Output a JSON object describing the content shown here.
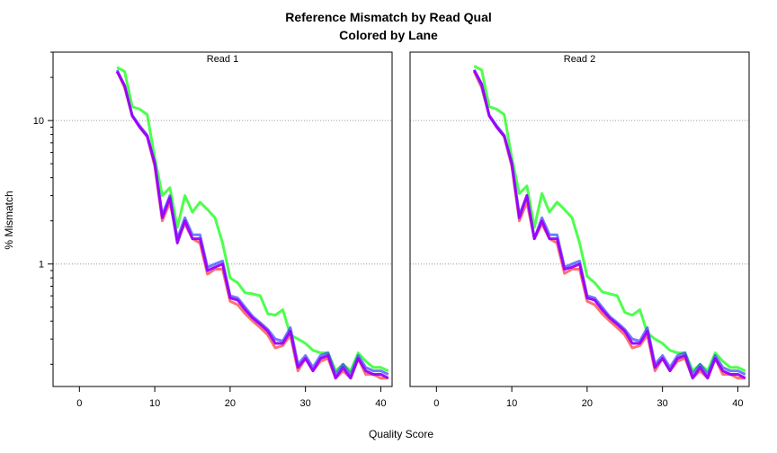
{
  "chart_data": {
    "type": "line",
    "title": "Reference Mismatch by Read Qual",
    "subtitle": "Colored by Lane",
    "xlabel": "Quality Score",
    "ylabel": "% Mismatch",
    "xlim": [
      -3.5,
      41.5
    ],
    "ylim": [
      0.14,
      30
    ],
    "log_y": true,
    "x_ticks": [
      0,
      10,
      20,
      30,
      40
    ],
    "y_ticks": [
      1,
      10
    ],
    "grid": "horizontal dotted at y ticks",
    "x": [
      5,
      6,
      7,
      8,
      9,
      10,
      11,
      12,
      13,
      14,
      15,
      16,
      17,
      18,
      19,
      20,
      21,
      22,
      23,
      24,
      25,
      26,
      27,
      28,
      29,
      30,
      31,
      32,
      33,
      34,
      35,
      36,
      37,
      38,
      39,
      40,
      41
    ],
    "panels": [
      {
        "label": "Read 1",
        "series": [
          {
            "color": "#00ff00",
            "values": [
              23.5,
              22.0,
              12.5,
              12.0,
              11.0,
              5.5,
              3.0,
              3.4,
              1.8,
              3.0,
              2.3,
              2.7,
              2.4,
              2.1,
              1.4,
              0.8,
              0.74,
              0.63,
              0.62,
              0.6,
              0.45,
              0.44,
              0.48,
              0.32,
              0.3,
              0.28,
              0.25,
              0.24,
              0.24,
              0.18,
              0.2,
              0.18,
              0.24,
              0.21,
              0.19,
              0.19,
              0.18
            ]
          },
          {
            "color": "#9a00ff",
            "values": [
              22.0,
              17.5,
              10.8,
              9.0,
              7.8,
              5.0,
              2.1,
              2.9,
              1.4,
              2.0,
              1.5,
              1.5,
              0.9,
              0.95,
              1.0,
              0.58,
              0.56,
              0.48,
              0.42,
              0.38,
              0.34,
              0.28,
              0.28,
              0.34,
              0.19,
              0.22,
              0.18,
              0.22,
              0.23,
              0.16,
              0.19,
              0.16,
              0.22,
              0.18,
              0.17,
              0.17,
              0.16
            ]
          },
          {
            "color": "#ff3333",
            "values": [
              22.0,
              17.0,
              10.8,
              9.0,
              7.7,
              4.8,
              2.0,
              2.7,
              1.5,
              1.9,
              1.5,
              1.4,
              0.85,
              0.92,
              0.92,
              0.55,
              0.52,
              0.45,
              0.4,
              0.36,
              0.32,
              0.26,
              0.27,
              0.32,
              0.18,
              0.22,
              0.18,
              0.21,
              0.22,
              0.16,
              0.18,
              0.16,
              0.22,
              0.17,
              0.17,
              0.16,
              0.16
            ]
          },
          {
            "color": "#3344ff",
            "values": [
              22.5,
              17.5,
              10.9,
              9.2,
              7.9,
              5.1,
              2.2,
              3.0,
              1.5,
              2.1,
              1.6,
              1.6,
              0.95,
              1.0,
              1.05,
              0.6,
              0.58,
              0.5,
              0.43,
              0.39,
              0.35,
              0.3,
              0.29,
              0.36,
              0.2,
              0.23,
              0.19,
              0.23,
              0.24,
              0.17,
              0.2,
              0.17,
              0.23,
              0.19,
              0.18,
              0.18,
              0.17
            ]
          }
        ]
      },
      {
        "label": "Read 2",
        "series": [
          {
            "color": "#00ff00",
            "values": [
              24.0,
              22.5,
              12.5,
              12.0,
              11.0,
              5.5,
              3.1,
              3.5,
              1.8,
              3.1,
              2.3,
              2.7,
              2.4,
              2.1,
              1.4,
              0.82,
              0.74,
              0.64,
              0.62,
              0.6,
              0.46,
              0.44,
              0.48,
              0.33,
              0.3,
              0.28,
              0.25,
              0.24,
              0.24,
              0.18,
              0.2,
              0.18,
              0.24,
              0.21,
              0.19,
              0.19,
              0.18
            ]
          },
          {
            "color": "#9a00ff",
            "values": [
              22.5,
              18.0,
              10.8,
              9.0,
              7.8,
              5.0,
              2.1,
              3.0,
              1.5,
              2.0,
              1.5,
              1.5,
              0.92,
              0.95,
              1.0,
              0.58,
              0.56,
              0.48,
              0.42,
              0.38,
              0.34,
              0.28,
              0.28,
              0.34,
              0.19,
              0.22,
              0.18,
              0.22,
              0.23,
              0.16,
              0.19,
              0.16,
              0.22,
              0.18,
              0.17,
              0.17,
              0.16
            ]
          },
          {
            "color": "#ff3333",
            "values": [
              22.0,
              17.0,
              10.8,
              9.0,
              7.7,
              4.8,
              2.0,
              2.7,
              1.5,
              1.9,
              1.5,
              1.4,
              0.86,
              0.92,
              0.92,
              0.55,
              0.52,
              0.45,
              0.4,
              0.36,
              0.32,
              0.26,
              0.27,
              0.32,
              0.18,
              0.22,
              0.18,
              0.21,
              0.22,
              0.16,
              0.18,
              0.16,
              0.22,
              0.17,
              0.17,
              0.16,
              0.16
            ]
          },
          {
            "color": "#3344ff",
            "values": [
              22.5,
              17.5,
              10.9,
              9.2,
              7.9,
              5.1,
              2.2,
              3.0,
              1.5,
              2.1,
              1.6,
              1.6,
              0.95,
              1.0,
              1.05,
              0.6,
              0.58,
              0.5,
              0.43,
              0.39,
              0.35,
              0.3,
              0.29,
              0.36,
              0.2,
              0.23,
              0.19,
              0.23,
              0.24,
              0.17,
              0.2,
              0.17,
              0.23,
              0.19,
              0.18,
              0.18,
              0.17
            ]
          }
        ]
      }
    ]
  }
}
